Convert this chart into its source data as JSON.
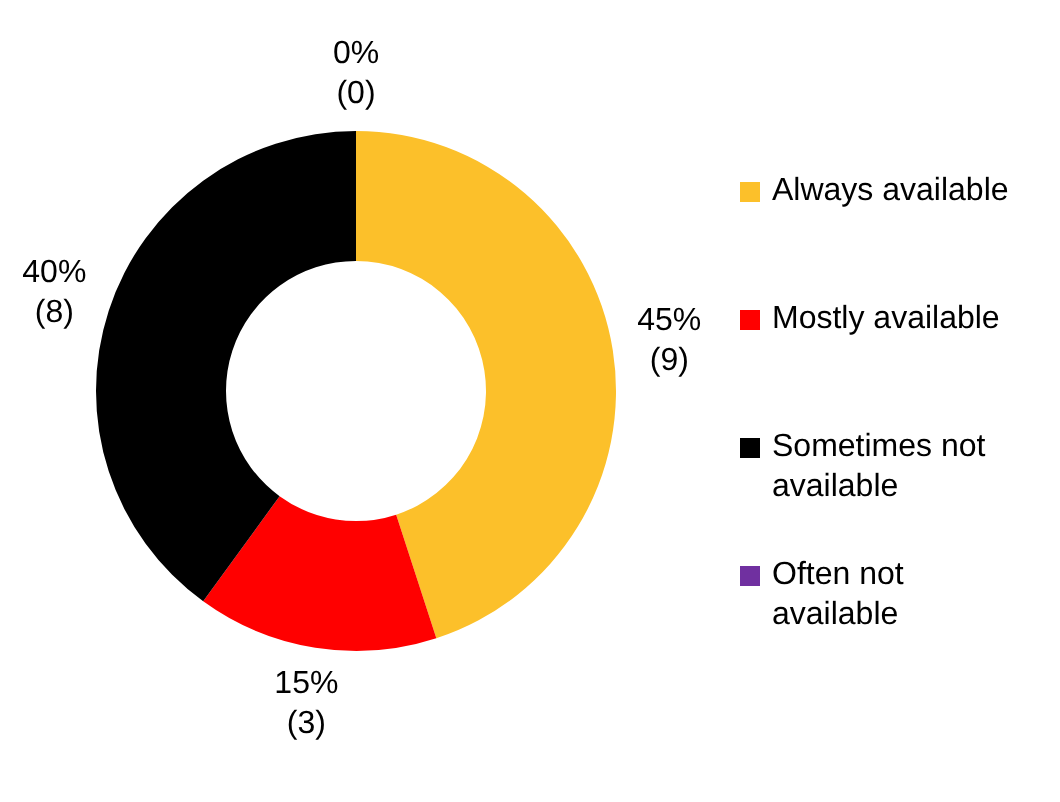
{
  "chart_data": {
    "type": "donut",
    "categories": [
      "Always available",
      "Mostly available",
      "Sometimes not available",
      "Often not available"
    ],
    "values": [
      9,
      3,
      8,
      0
    ],
    "colors": [
      "#fcc02a",
      "#ff0000",
      "#000000",
      "#7030a0"
    ],
    "value_labels": [
      "45%\n(9)",
      "15%\n(3)",
      "40%\n(8)",
      "0%\n(0)"
    ],
    "legend": "right"
  }
}
